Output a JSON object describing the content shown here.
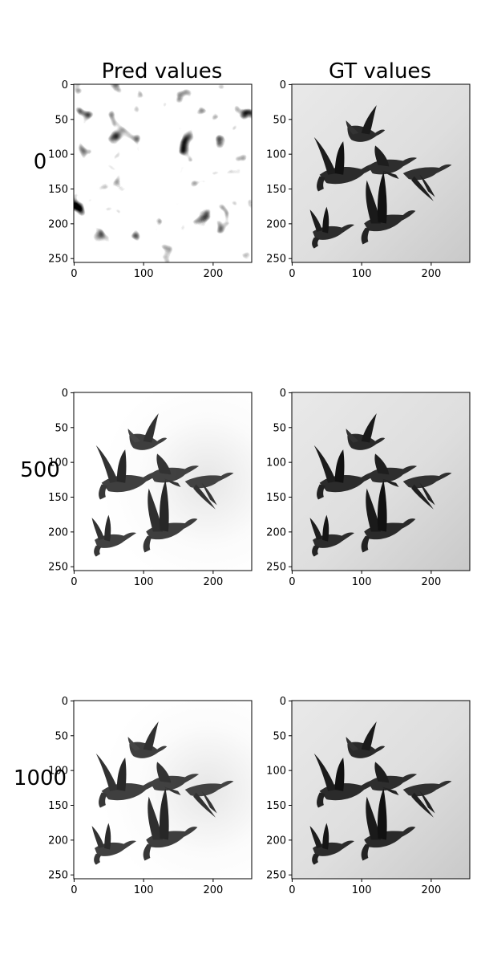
{
  "figure": {
    "column_titles": [
      "Pred values",
      "GT values"
    ],
    "row_labels": [
      "0",
      "500",
      "1000"
    ]
  },
  "chart_data": [
    {
      "type": "heatmap",
      "panel": "pred-iter-0",
      "content": "noise",
      "xlim": [
        0,
        255
      ],
      "ylim": [
        255,
        0
      ],
      "xticks": [
        "0",
        "100",
        "200"
      ],
      "yticks": [
        "0",
        "50",
        "100",
        "150",
        "200",
        "250"
      ]
    },
    {
      "type": "heatmap",
      "panel": "gt-iter-0",
      "content": "geese-gray-bg",
      "xlim": [
        0,
        255
      ],
      "ylim": [
        255,
        0
      ],
      "xticks": [
        "0",
        "100",
        "200"
      ],
      "yticks": [
        "0",
        "50",
        "100",
        "150",
        "200",
        "250"
      ]
    },
    {
      "type": "heatmap",
      "panel": "pred-iter-500",
      "content": "geese-white-bg",
      "xlim": [
        0,
        255
      ],
      "ylim": [
        255,
        0
      ],
      "xticks": [
        "0",
        "100",
        "200"
      ],
      "yticks": [
        "0",
        "50",
        "100",
        "150",
        "200",
        "250"
      ]
    },
    {
      "type": "heatmap",
      "panel": "gt-iter-500",
      "content": "geese-gray-bg",
      "xlim": [
        0,
        255
      ],
      "ylim": [
        255,
        0
      ],
      "xticks": [
        "0",
        "100",
        "200"
      ],
      "yticks": [
        "0",
        "50",
        "100",
        "150",
        "200",
        "250"
      ]
    },
    {
      "type": "heatmap",
      "panel": "pred-iter-1000",
      "content": "geese-white-bg",
      "xlim": [
        0,
        255
      ],
      "ylim": [
        255,
        0
      ],
      "xticks": [
        "0",
        "100",
        "200"
      ],
      "yticks": [
        "0",
        "50",
        "100",
        "150",
        "200",
        "250"
      ]
    },
    {
      "type": "heatmap",
      "panel": "gt-iter-1000",
      "content": "geese-gray-bg",
      "xlim": [
        0,
        255
      ],
      "ylim": [
        255,
        0
      ],
      "xticks": [
        "0",
        "100",
        "200"
      ],
      "yticks": [
        "0",
        "50",
        "100",
        "150",
        "200",
        "250"
      ]
    }
  ]
}
